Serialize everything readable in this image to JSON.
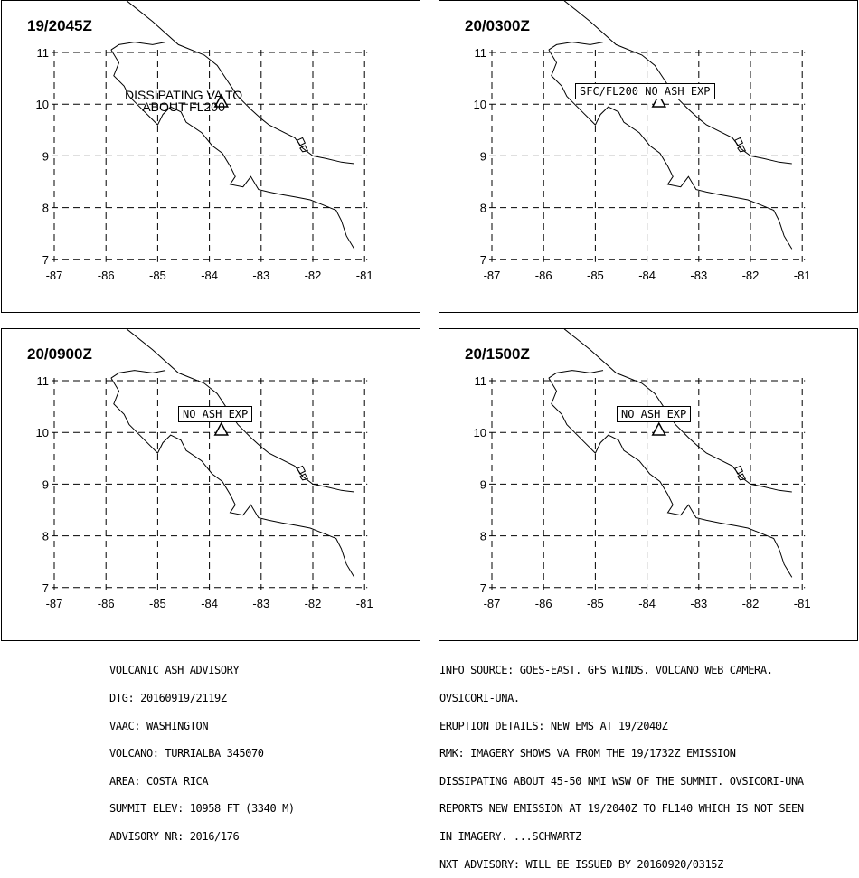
{
  "panels": [
    {
      "time": "19/2045Z",
      "annotation_lines": [
        "DISSIPATING VA TO",
        "ABOUT FL200"
      ],
      "annotation_boxed": false
    },
    {
      "time": "20/0300Z",
      "annotation_lines": [
        "SFC/FL200 NO ASH EXP"
      ],
      "annotation_boxed": true
    },
    {
      "time": "20/0900Z",
      "annotation_lines": [
        "NO ASH EXP"
      ],
      "annotation_boxed": true
    },
    {
      "time": "20/1500Z",
      "annotation_lines": [
        "NO ASH EXP"
      ],
      "annotation_boxed": true
    }
  ],
  "axes": {
    "lon_ticks": [
      "-87",
      "-86",
      "-85",
      "-84",
      "-83",
      "-82",
      "-81"
    ],
    "lat_ticks": [
      "11",
      "10",
      "9",
      "8",
      "7"
    ]
  },
  "volcano_marker": {
    "name": "triangle-icon",
    "lat": 10.02,
    "lon": -83.77
  },
  "footer_left": [
    "VOLCANIC ASH ADVISORY",
    "DTG: 20160919/2119Z",
    "VAAC: WASHINGTON",
    "VOLCANO: TURRIALBA 345070",
    "AREA: COSTA RICA",
    "SUMMIT ELEV: 10958 FT (3340 M)",
    "ADVISORY NR: 2016/176"
  ],
  "footer_right": [
    "INFO SOURCE: GOES-EAST. GFS WINDS. VOLCANO WEB CAMERA.",
    "OVSICORI-UNA.",
    "ERUPTION DETAILS: NEW EMS AT 19/2040Z",
    "RMK: IMAGERY SHOWS VA FROM THE 19/1732Z EMISSION",
    "DISSIPATING ABOUT 45-50 NMI WSW OF THE SUMMIT. OVSICORI-UNA",
    "REPORTS NEW EMISSION AT 19/2040Z TO FL140 WHICH IS NOT SEEN",
    "IN IMAGERY. ...SCHWARTZ",
    "NXT ADVISORY: WILL BE ISSUED BY 20160920/0315Z"
  ]
}
